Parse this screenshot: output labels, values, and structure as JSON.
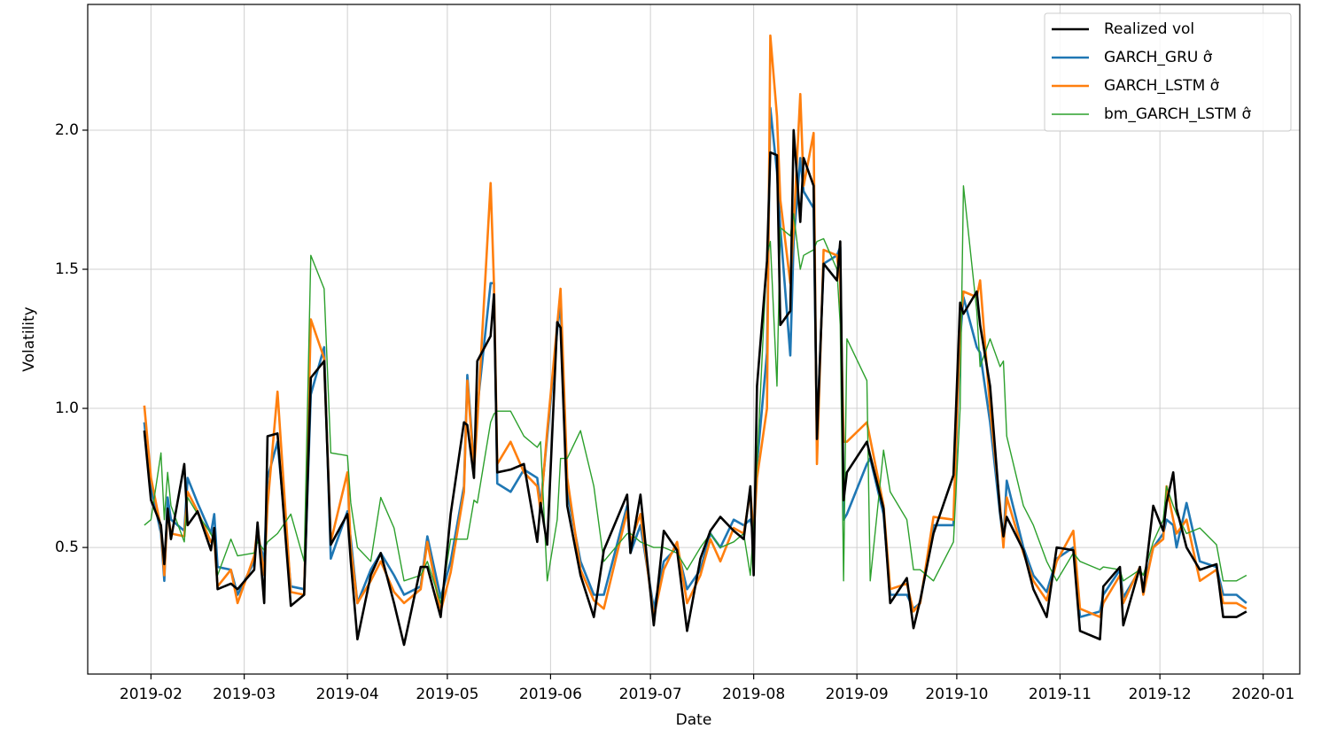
{
  "chart_data": {
    "type": "line",
    "xlabel": "Date",
    "ylabel": "Volatility",
    "grid": true,
    "legend": "upper right",
    "xlim": [
      "2019-01-13",
      "2020-01-12"
    ],
    "xticks": [
      "2019-02",
      "2019-03",
      "2019-04",
      "2019-05",
      "2019-06",
      "2019-07",
      "2019-08",
      "2019-09",
      "2019-10",
      "2019-11",
      "2019-12",
      "2020-01"
    ],
    "ylim": [
      0.045,
      2.452
    ],
    "yticks": [
      0.5,
      {
        "value": 1.0,
        "label": "1.0"
      },
      1.5,
      {
        "value": 2.0,
        "label": "2.0"
      }
    ],
    "x": [
      "2019-01-30",
      "2019-02-01",
      "2019-02-04",
      "2019-02-05",
      "2019-02-06",
      "2019-02-07",
      "2019-02-11",
      "2019-02-12",
      "2019-02-15",
      "2019-02-19",
      "2019-02-20",
      "2019-02-21",
      "2019-02-25",
      "2019-02-27",
      "2019-03-04",
      "2019-03-05",
      "2019-03-07",
      "2019-03-08",
      "2019-03-11",
      "2019-03-15",
      "2019-03-19",
      "2019-03-21",
      "2019-03-25",
      "2019-03-27",
      "2019-04-01",
      "2019-04-02",
      "2019-04-04",
      "2019-04-08",
      "2019-04-11",
      "2019-04-15",
      "2019-04-18",
      "2019-04-23",
      "2019-04-25",
      "2019-04-29",
      "2019-05-02",
      "2019-05-06",
      "2019-05-07",
      "2019-05-09",
      "2019-05-10",
      "2019-05-14",
      "2019-05-15",
      "2019-05-16",
      "2019-05-20",
      "2019-05-24",
      "2019-05-28",
      "2019-05-29",
      "2019-05-31",
      "2019-06-03",
      "2019-06-04",
      "2019-06-06",
      "2019-06-10",
      "2019-06-14",
      "2019-06-17",
      "2019-06-24",
      "2019-06-25",
      "2019-06-28",
      "2019-07-02",
      "2019-07-05",
      "2019-07-09",
      "2019-07-12",
      "2019-07-16",
      "2019-07-19",
      "2019-07-22",
      "2019-07-26",
      "2019-07-29",
      "2019-07-31",
      "2019-08-01",
      "2019-08-02",
      "2019-08-05",
      "2019-08-06",
      "2019-08-08",
      "2019-08-09",
      "2019-08-12",
      "2019-08-13",
      "2019-08-15",
      "2019-08-16",
      "2019-08-19",
      "2019-08-20",
      "2019-08-22",
      "2019-08-26",
      "2019-08-27",
      "2019-08-28",
      "2019-08-29",
      "2019-09-04",
      "2019-09-05",
      "2019-09-09",
      "2019-09-11",
      "2019-09-16",
      "2019-09-18",
      "2019-09-20",
      "2019-09-24",
      "2019-09-30",
      "2019-10-02",
      "2019-10-03",
      "2019-10-07",
      "2019-10-08",
      "2019-10-11",
      "2019-10-14",
      "2019-10-15",
      "2019-10-16",
      "2019-10-21",
      "2019-10-24",
      "2019-10-28",
      "2019-10-31",
      "2019-11-05",
      "2019-11-07",
      "2019-11-13",
      "2019-11-14",
      "2019-11-19",
      "2019-11-20",
      "2019-11-25",
      "2019-11-26",
      "2019-11-29",
      "2019-12-02",
      "2019-12-03",
      "2019-12-05",
      "2019-12-06",
      "2019-12-09",
      "2019-12-13",
      "2019-12-18",
      "2019-12-20",
      "2019-12-24",
      "2019-12-27"
    ],
    "series": [
      {
        "name": "Realized vol",
        "color": "#000000",
        "linewidth": 2.6,
        "values": [
          0.92,
          0.67,
          0.58,
          0.44,
          0.64,
          0.53,
          0.8,
          0.58,
          0.63,
          0.49,
          0.57,
          0.35,
          0.37,
          0.35,
          0.42,
          0.59,
          0.3,
          0.9,
          0.91,
          0.29,
          0.33,
          1.11,
          1.17,
          0.51,
          0.62,
          0.45,
          0.17,
          0.4,
          0.48,
          0.3,
          0.15,
          0.43,
          0.43,
          0.25,
          0.62,
          0.95,
          0.94,
          0.75,
          1.17,
          1.26,
          1.41,
          0.77,
          0.78,
          0.8,
          0.52,
          0.66,
          0.51,
          1.31,
          1.29,
          0.65,
          0.4,
          0.25,
          0.49,
          0.69,
          0.48,
          0.69,
          0.22,
          0.56,
          0.49,
          0.2,
          0.46,
          0.56,
          0.61,
          0.56,
          0.53,
          0.72,
          0.4,
          1.08,
          1.53,
          1.92,
          1.91,
          1.3,
          1.35,
          2.0,
          1.67,
          1.9,
          1.8,
          0.89,
          1.52,
          1.46,
          1.6,
          0.67,
          0.77,
          0.88,
          0.83,
          0.64,
          0.3,
          0.39,
          0.21,
          0.31,
          0.55,
          0.76,
          1.38,
          1.34,
          1.42,
          1.3,
          1.08,
          0.63,
          0.54,
          0.61,
          0.49,
          0.35,
          0.25,
          0.5,
          0.49,
          0.2,
          0.17,
          0.36,
          0.43,
          0.22,
          0.43,
          0.34,
          0.65,
          0.56,
          0.66,
          0.77,
          0.64,
          0.5,
          0.42,
          0.44,
          0.25,
          0.25,
          0.27
        ]
      },
      {
        "name": "GARCH_GRU σ̂",
        "color": "#1f77b4",
        "linewidth": 2.6,
        "values": [
          0.95,
          0.72,
          0.55,
          0.38,
          0.68,
          0.6,
          0.56,
          0.75,
          0.66,
          0.55,
          0.62,
          0.43,
          0.42,
          0.33,
          0.45,
          0.55,
          0.45,
          0.75,
          0.88,
          0.36,
          0.35,
          1.05,
          1.22,
          0.46,
          0.63,
          0.53,
          0.3,
          0.42,
          0.48,
          0.4,
          0.33,
          0.36,
          0.54,
          0.32,
          0.45,
          0.72,
          1.12,
          0.8,
          1.0,
          1.45,
          1.45,
          0.73,
          0.7,
          0.78,
          0.75,
          0.65,
          0.9,
          1.28,
          1.38,
          0.7,
          0.45,
          0.33,
          0.33,
          0.65,
          0.48,
          0.58,
          0.28,
          0.45,
          0.5,
          0.35,
          0.42,
          0.55,
          0.5,
          0.6,
          0.58,
          0.6,
          0.55,
          0.8,
          1.2,
          2.08,
          1.85,
          1.65,
          1.19,
          1.6,
          1.9,
          1.78,
          1.72,
          0.9,
          1.52,
          1.55,
          1.58,
          0.6,
          0.62,
          0.8,
          0.82,
          0.62,
          0.33,
          0.33,
          0.28,
          0.3,
          0.58,
          0.58,
          1.25,
          1.4,
          1.22,
          1.2,
          0.95,
          0.62,
          0.52,
          0.74,
          0.5,
          0.4,
          0.34,
          0.46,
          0.5,
          0.25,
          0.27,
          0.33,
          0.42,
          0.32,
          0.42,
          0.35,
          0.5,
          0.55,
          0.6,
          0.58,
          0.5,
          0.66,
          0.45,
          0.43,
          0.33,
          0.33,
          0.3
        ]
      },
      {
        "name": "GARCH_LSTM σ̂",
        "color": "#ff7f0e",
        "linewidth": 2.6,
        "values": [
          1.01,
          0.75,
          0.57,
          0.4,
          0.63,
          0.55,
          0.54,
          0.7,
          0.63,
          0.52,
          0.53,
          0.36,
          0.42,
          0.3,
          0.47,
          0.57,
          0.4,
          0.65,
          1.06,
          0.34,
          0.33,
          1.32,
          1.18,
          0.52,
          0.77,
          0.5,
          0.3,
          0.38,
          0.45,
          0.34,
          0.3,
          0.35,
          0.52,
          0.27,
          0.41,
          0.7,
          1.1,
          0.78,
          0.95,
          1.81,
          1.45,
          0.8,
          0.88,
          0.77,
          0.72,
          0.63,
          0.92,
          1.3,
          1.43,
          0.75,
          0.42,
          0.31,
          0.28,
          0.63,
          0.52,
          0.62,
          0.25,
          0.42,
          0.52,
          0.3,
          0.4,
          0.53,
          0.45,
          0.57,
          0.55,
          0.7,
          0.55,
          0.75,
          1.0,
          2.34,
          2.05,
          1.75,
          1.45,
          1.65,
          2.13,
          1.8,
          1.99,
          0.8,
          1.57,
          1.55,
          1.45,
          0.88,
          0.88,
          0.95,
          0.89,
          0.65,
          0.35,
          0.37,
          0.27,
          0.3,
          0.61,
          0.6,
          1.3,
          1.42,
          1.4,
          1.46,
          1.0,
          0.65,
          0.5,
          0.68,
          0.48,
          0.38,
          0.31,
          0.45,
          0.56,
          0.28,
          0.25,
          0.3,
          0.4,
          0.3,
          0.43,
          0.33,
          0.5,
          0.53,
          0.72,
          0.6,
          0.55,
          0.6,
          0.38,
          0.42,
          0.3,
          0.3,
          0.28
        ]
      },
      {
        "name": "bm_GARCH_LSTM σ̂",
        "color": "#2ca02c",
        "linewidth": 1.4,
        "values": [
          0.58,
          0.6,
          0.84,
          0.6,
          0.77,
          0.65,
          0.52,
          0.68,
          0.62,
          0.55,
          0.52,
          0.4,
          0.53,
          0.47,
          0.48,
          0.52,
          0.49,
          0.52,
          0.55,
          0.62,
          0.45,
          1.55,
          1.43,
          0.84,
          0.83,
          0.66,
          0.5,
          0.45,
          0.68,
          0.57,
          0.38,
          0.4,
          0.45,
          0.3,
          0.53,
          0.53,
          0.53,
          0.67,
          0.66,
          0.95,
          0.98,
          0.99,
          0.99,
          0.9,
          0.86,
          0.88,
          0.38,
          0.6,
          0.82,
          0.82,
          0.92,
          0.72,
          0.45,
          0.55,
          0.55,
          0.52,
          0.5,
          0.5,
          0.48,
          0.42,
          0.5,
          0.55,
          0.5,
          0.52,
          0.55,
          0.4,
          0.58,
          0.8,
          1.55,
          1.6,
          1.08,
          1.65,
          1.62,
          1.7,
          1.5,
          1.55,
          1.57,
          1.6,
          1.61,
          1.5,
          1.3,
          0.38,
          1.25,
          1.1,
          0.38,
          0.85,
          0.7,
          0.6,
          0.42,
          0.42,
          0.38,
          0.52,
          1.0,
          1.8,
          1.35,
          1.15,
          1.25,
          1.15,
          1.17,
          0.9,
          0.65,
          0.58,
          0.45,
          0.38,
          0.48,
          0.45,
          0.42,
          0.43,
          0.42,
          0.38,
          0.42,
          0.4,
          0.52,
          0.6,
          0.72,
          0.65,
          0.62,
          0.55,
          0.57,
          0.51,
          0.38,
          0.38,
          0.4
        ]
      }
    ]
  }
}
